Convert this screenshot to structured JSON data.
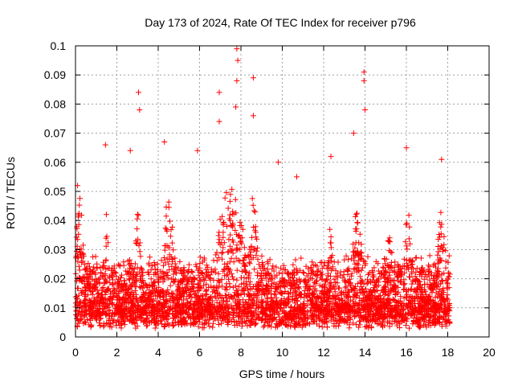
{
  "chart_data": {
    "type": "scatter",
    "title": "Day 173 of 2024, Rate Of TEC Index for receiver p796",
    "xlabel": "GPS time / hours",
    "ylabel": "ROTI / TECUs",
    "xlim": [
      0,
      20
    ],
    "ylim": [
      0,
      0.1
    ],
    "x_ticks": [
      0,
      2,
      4,
      6,
      8,
      10,
      12,
      14,
      16,
      18,
      20
    ],
    "y_ticks": [
      0,
      0.01,
      0.02,
      0.03,
      0.04,
      0.05,
      0.06,
      0.07,
      0.08,
      0.09,
      0.1
    ],
    "x_tick_labels": [
      "0",
      "2",
      "4",
      "6",
      "8",
      "10",
      "12",
      "14",
      "16",
      "18",
      "20"
    ],
    "y_tick_labels": [
      "0",
      "0.01",
      "0.02",
      "0.03",
      "0.04",
      "0.05",
      "0.06",
      "0.07",
      "0.08",
      "0.09",
      "0.1"
    ],
    "grid": true,
    "marker": "+",
    "series_color": "#ff0000",
    "data_range_x": [
      0,
      18.1
    ],
    "notable_points": [
      {
        "x": 0.1,
        "y": 0.052
      },
      {
        "x": 1.45,
        "y": 0.066
      },
      {
        "x": 2.65,
        "y": 0.064
      },
      {
        "x": 3.05,
        "y": 0.084
      },
      {
        "x": 3.1,
        "y": 0.078
      },
      {
        "x": 4.3,
        "y": 0.067
      },
      {
        "x": 5.9,
        "y": 0.064
      },
      {
        "x": 6.95,
        "y": 0.084
      },
      {
        "x": 6.95,
        "y": 0.074
      },
      {
        "x": 7.8,
        "y": 0.099
      },
      {
        "x": 7.85,
        "y": 0.095
      },
      {
        "x": 7.8,
        "y": 0.088
      },
      {
        "x": 7.75,
        "y": 0.079
      },
      {
        "x": 8.6,
        "y": 0.089
      },
      {
        "x": 8.6,
        "y": 0.076
      },
      {
        "x": 9.8,
        "y": 0.06
      },
      {
        "x": 10.7,
        "y": 0.055
      },
      {
        "x": 12.35,
        "y": 0.062
      },
      {
        "x": 13.45,
        "y": 0.07
      },
      {
        "x": 13.95,
        "y": 0.091
      },
      {
        "x": 13.95,
        "y": 0.088
      },
      {
        "x": 14.0,
        "y": 0.078
      },
      {
        "x": 16.0,
        "y": 0.065
      },
      {
        "x": 17.7,
        "y": 0.061
      }
    ],
    "bulk_points": "dense cluster of roughly 4000 points between y=0.003 and y=0.04 spanning x=0 to 18.1, with local peaks near x≈0.2, 1.5, 3, 4.5, 7-8.7, 12.3, 13.5-14, 16 and 17.7"
  }
}
